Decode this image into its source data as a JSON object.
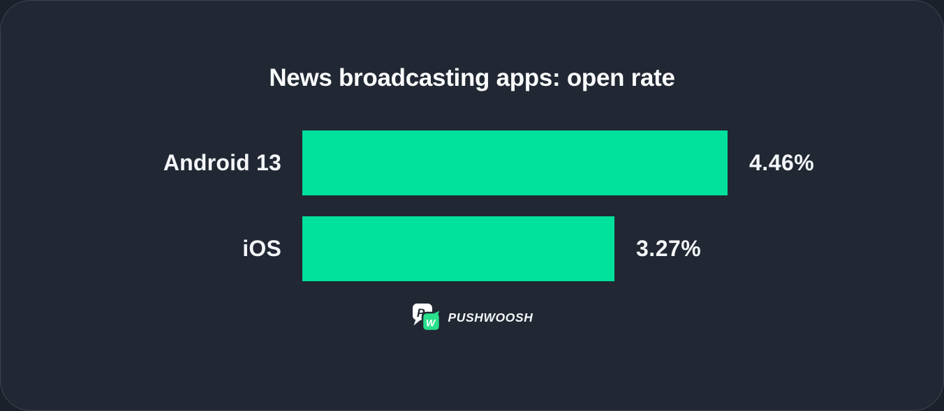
{
  "chart_data": {
    "type": "bar",
    "orientation": "horizontal",
    "title": "News broadcasting apps: open rate",
    "categories": [
      "Android 13",
      "iOS"
    ],
    "values": [
      4.46,
      3.27
    ],
    "value_labels": [
      "4.46%",
      "3.27%"
    ],
    "xlim": [
      0,
      4.46
    ],
    "grid": false,
    "legend": false,
    "bar_color": "#00E19C",
    "background_color": "#212834",
    "text_color": "#F4F6F8"
  },
  "logo": {
    "brand": "PUSHWOOSH",
    "icon": "pushwoosh-speech-bubbles-icon",
    "bubble_p_color": "#FFFFFF",
    "bubble_w_color": "#29E08D",
    "bubble_p_letter": "P",
    "bubble_w_letter": "W"
  }
}
